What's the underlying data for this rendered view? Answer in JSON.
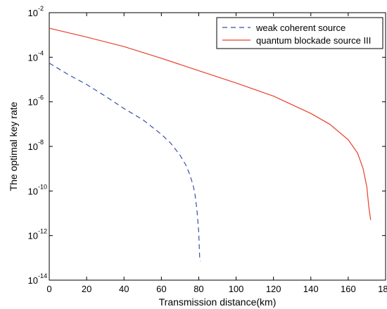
{
  "chart_data": {
    "type": "line",
    "xlabel": "Transmission distance(km)",
    "ylabel": "The optimal key rate",
    "xlim": [
      0,
      180
    ],
    "ylim": [
      1e-14,
      0.01
    ],
    "y_scale": "log",
    "x_ticks": [
      0,
      20,
      40,
      60,
      80,
      100,
      120,
      140,
      160,
      180
    ],
    "y_ticks": [
      {
        "base": "10",
        "exp": "-14",
        "value": 1e-14
      },
      {
        "base": "10",
        "exp": "-12",
        "value": 1e-12
      },
      {
        "base": "10",
        "exp": "-10",
        "value": 1e-10
      },
      {
        "base": "10",
        "exp": "-8",
        "value": 1e-08
      },
      {
        "base": "10",
        "exp": "-6",
        "value": 1e-06
      },
      {
        "base": "10",
        "exp": "-4",
        "value": 0.0001
      },
      {
        "base": "10",
        "exp": "-2",
        "value": 0.01
      }
    ],
    "grid": false,
    "legend_position": "top-right",
    "series": [
      {
        "name": "weak coherent source",
        "color": "#3b4fa8",
        "dash": "dashed",
        "x": [
          0,
          10,
          20,
          30,
          40,
          50,
          60,
          65,
          70,
          73,
          75,
          77,
          78,
          79,
          80,
          80.5,
          81
        ],
        "y": [
          5.5e-05,
          1.7e-05,
          6e-06,
          1.8e-06,
          5e-07,
          1.6e-07,
          3.5e-08,
          1.4e-08,
          4e-09,
          1.5e-09,
          6e-10,
          1.8e-10,
          7e-11,
          1.5e-11,
          1.5e-12,
          1e-13,
          7e-14
        ]
      },
      {
        "name": "quantum blockade source III",
        "color": "#e8402a",
        "dash": "solid",
        "x": [
          0,
          20,
          40,
          60,
          80,
          100,
          120,
          140,
          150,
          160,
          165,
          168,
          170,
          171,
          172
        ],
        "y": [
          0.002,
          0.0008,
          0.0003,
          9e-05,
          2.5e-05,
          7e-06,
          1.8e-06,
          3e-07,
          1e-07,
          2e-08,
          5e-09,
          1e-09,
          1.5e-10,
          2e-11,
          5e-12
        ]
      }
    ]
  }
}
